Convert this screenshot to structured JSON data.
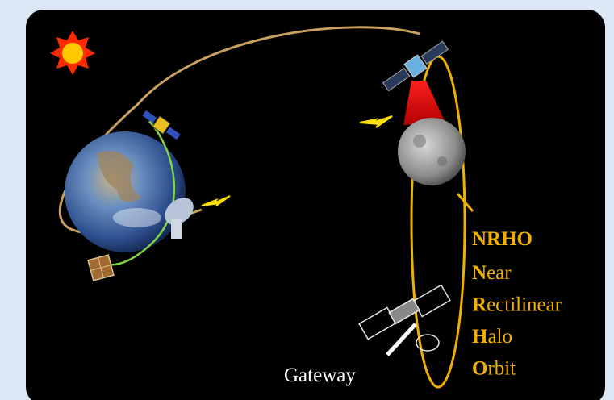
{
  "acronym": "NRHO",
  "words": [
    {
      "initial": "N",
      "rest": "ear"
    },
    {
      "initial": "R",
      "rest": "ectilinear"
    },
    {
      "initial": "H",
      "rest": "alo"
    },
    {
      "initial": "O",
      "rest": "rbit"
    }
  ],
  "station": "Gateway"
}
